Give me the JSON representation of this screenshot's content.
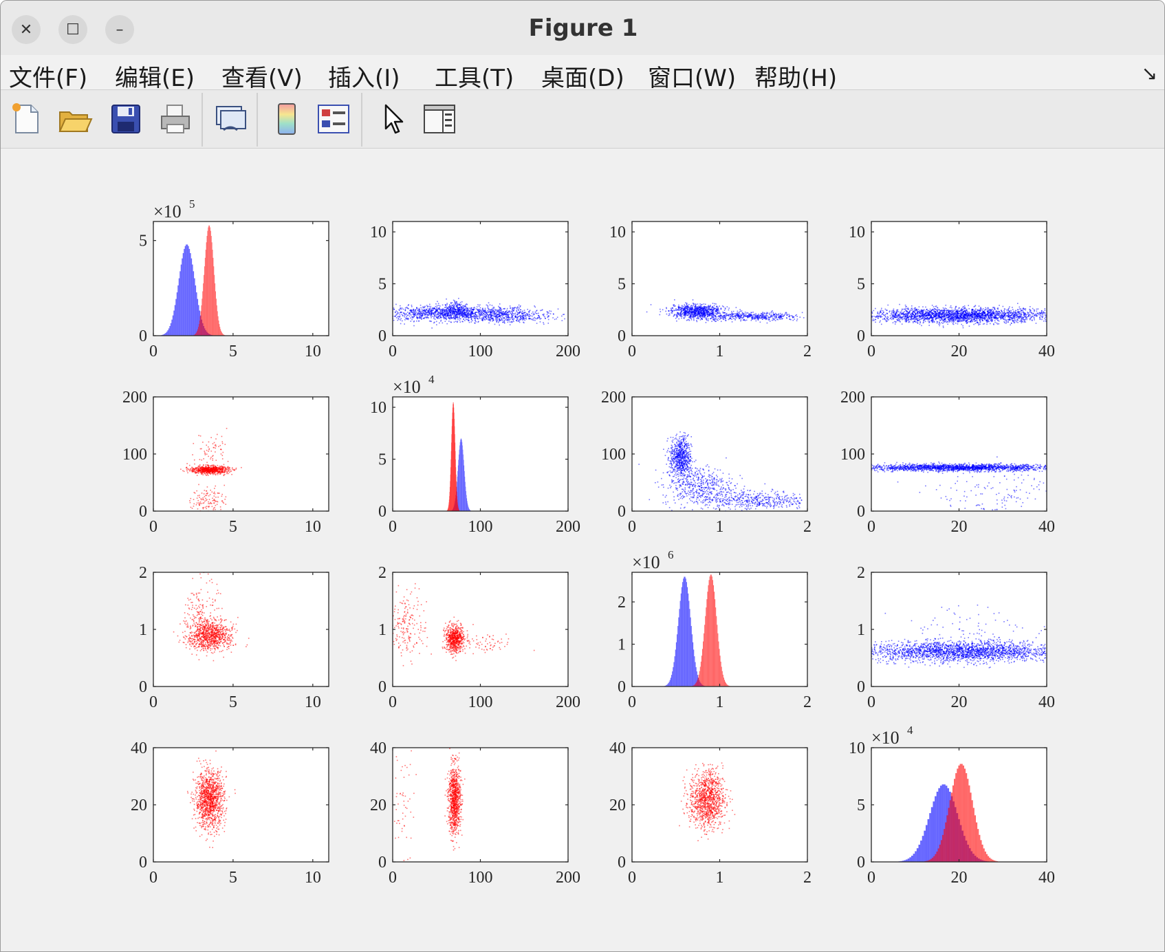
{
  "window": {
    "title": "Figure 1",
    "close_symbol": "✕",
    "maximize_symbol": "☐",
    "minimize_symbol": "–"
  },
  "menu": {
    "items": [
      "文件(F)",
      "编辑(E)",
      "查看(V)",
      "插入(I)",
      "工具(T)",
      "桌面(D)",
      "窗口(W)",
      "帮助(H)"
    ],
    "dock_symbol": "↘"
  },
  "toolbar": {
    "icons": [
      "new-figure-icon",
      "open-file-icon",
      "save-icon",
      "print-icon",
      "link-plot-icon",
      "colorbar-icon",
      "legend-icon",
      "pointer-icon",
      "property-inspector-icon"
    ]
  },
  "colors": {
    "blue": "#0000ff",
    "red": "#ff0000"
  },
  "chart_data": [
    {
      "type": "histogram",
      "row": 1,
      "col": 1,
      "xlim": [
        0,
        11
      ],
      "xticks": [
        0,
        5,
        10
      ],
      "ylim": [
        0,
        6
      ],
      "yticks": [
        0,
        5
      ],
      "multiplier": "×10",
      "exponent": "5",
      "series": [
        {
          "color": "blue",
          "center": 2.1,
          "width": 0.5,
          "peak": 4.8
        },
        {
          "color": "red",
          "center": 3.5,
          "width": 0.3,
          "peak": 5.8
        }
      ]
    },
    {
      "type": "scatter",
      "row": 1,
      "col": 2,
      "color": "blue",
      "xlim": [
        0,
        200
      ],
      "xticks": [
        0,
        100,
        200
      ],
      "ylim": [
        0,
        11
      ],
      "yticks": [
        0,
        5,
        10
      ]
    },
    {
      "type": "scatter",
      "row": 1,
      "col": 3,
      "color": "blue",
      "xlim": [
        0,
        2
      ],
      "xticks": [
        0,
        1,
        2
      ],
      "ylim": [
        0,
        11
      ],
      "yticks": [
        0,
        5,
        10
      ]
    },
    {
      "type": "scatter",
      "row": 1,
      "col": 4,
      "color": "blue",
      "xlim": [
        0,
        40
      ],
      "xticks": [
        0,
        20,
        40
      ],
      "ylim": [
        0,
        11
      ],
      "yticks": [
        0,
        5,
        10
      ]
    },
    {
      "type": "scatter",
      "row": 2,
      "col": 1,
      "color": "red",
      "xlim": [
        0,
        11
      ],
      "xticks": [
        0,
        5,
        10
      ],
      "ylim": [
        0,
        200
      ],
      "yticks": [
        0,
        100,
        200
      ]
    },
    {
      "type": "histogram",
      "row": 2,
      "col": 2,
      "xlim": [
        0,
        200
      ],
      "xticks": [
        0,
        100,
        200
      ],
      "ylim": [
        0,
        11
      ],
      "yticks": [
        0,
        5,
        10
      ],
      "multiplier": "×10",
      "exponent": "4",
      "series": [
        {
          "color": "blue",
          "center": 78,
          "width": 3.5,
          "peak": 7
        },
        {
          "color": "red",
          "center": 69,
          "width": 2.2,
          "peak": 10.5
        }
      ]
    },
    {
      "type": "scatter",
      "row": 2,
      "col": 3,
      "color": "blue",
      "xlim": [
        0,
        2
      ],
      "xticks": [
        0,
        1,
        2
      ],
      "ylim": [
        0,
        200
      ],
      "yticks": [
        0,
        100,
        200
      ]
    },
    {
      "type": "scatter",
      "row": 2,
      "col": 4,
      "color": "blue",
      "xlim": [
        0,
        40
      ],
      "xticks": [
        0,
        20,
        40
      ],
      "ylim": [
        0,
        200
      ],
      "yticks": [
        0,
        100,
        200
      ]
    },
    {
      "type": "scatter",
      "row": 3,
      "col": 1,
      "color": "red",
      "xlim": [
        0,
        11
      ],
      "xticks": [
        0,
        5,
        10
      ],
      "ylim": [
        0,
        2
      ],
      "yticks": [
        0,
        1,
        2
      ]
    },
    {
      "type": "scatter",
      "row": 3,
      "col": 2,
      "color": "red",
      "xlim": [
        0,
        200
      ],
      "xticks": [
        0,
        100,
        200
      ],
      "ylim": [
        0,
        2
      ],
      "yticks": [
        0,
        1,
        2
      ]
    },
    {
      "type": "histogram",
      "row": 3,
      "col": 3,
      "xlim": [
        0,
        2
      ],
      "xticks": [
        0,
        1,
        2
      ],
      "ylim": [
        0,
        2.7
      ],
      "yticks": [
        0,
        1,
        2
      ],
      "multiplier": "×10",
      "exponent": "6",
      "series": [
        {
          "color": "blue",
          "center": 0.6,
          "width": 0.07,
          "peak": 2.6
        },
        {
          "color": "red",
          "center": 0.9,
          "width": 0.065,
          "peak": 2.65
        }
      ]
    },
    {
      "type": "scatter",
      "row": 3,
      "col": 4,
      "color": "blue",
      "xlim": [
        0,
        40
      ],
      "xticks": [
        0,
        20,
        40
      ],
      "ylim": [
        0,
        2
      ],
      "yticks": [
        0,
        1,
        2
      ]
    },
    {
      "type": "scatter",
      "row": 4,
      "col": 1,
      "color": "red",
      "xlim": [
        0,
        11
      ],
      "xticks": [
        0,
        5,
        10
      ],
      "ylim": [
        0,
        40
      ],
      "yticks": [
        0,
        20,
        40
      ]
    },
    {
      "type": "scatter",
      "row": 4,
      "col": 2,
      "color": "red",
      "xlim": [
        0,
        200
      ],
      "xticks": [
        0,
        100,
        200
      ],
      "ylim": [
        0,
        40
      ],
      "yticks": [
        0,
        20,
        40
      ]
    },
    {
      "type": "scatter",
      "row": 4,
      "col": 3,
      "color": "red",
      "xlim": [
        0,
        2
      ],
      "xticks": [
        0,
        1,
        2
      ],
      "ylim": [
        0,
        40
      ],
      "yticks": [
        0,
        20,
        40
      ]
    },
    {
      "type": "histogram",
      "row": 4,
      "col": 4,
      "xlim": [
        0,
        40
      ],
      "xticks": [
        0,
        20,
        40
      ],
      "ylim": [
        0,
        10
      ],
      "yticks": [
        0,
        5,
        10
      ],
      "multiplier": "×10",
      "exponent": "4",
      "series": [
        {
          "color": "blue",
          "center": 16.5,
          "width": 3.2,
          "peak": 6.8
        },
        {
          "color": "red",
          "center": 20.5,
          "width": 2.6,
          "peak": 8.6
        }
      ]
    }
  ]
}
